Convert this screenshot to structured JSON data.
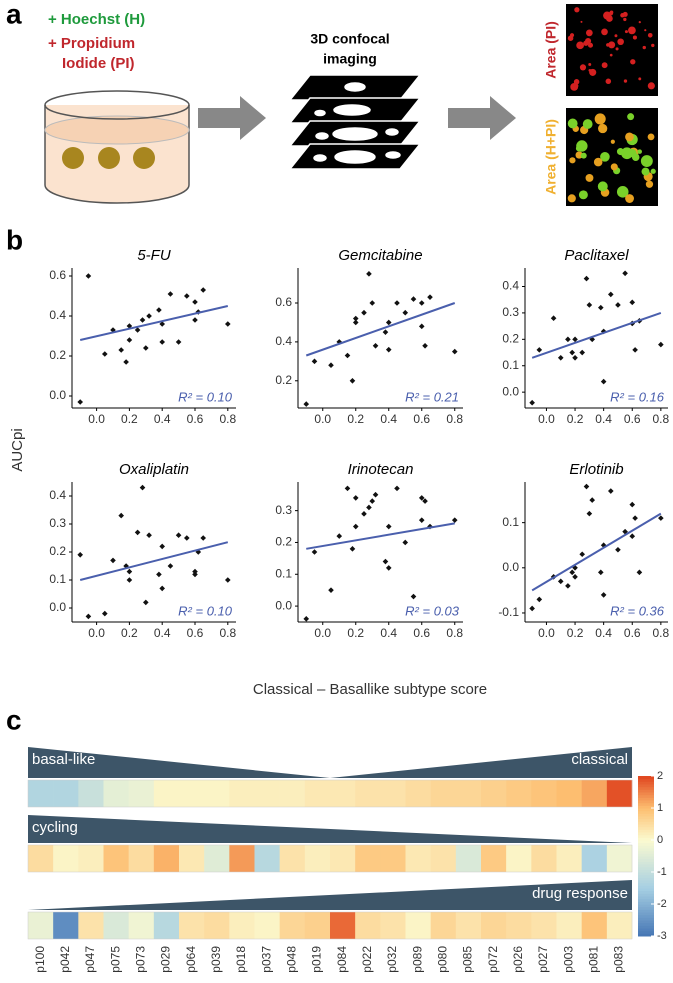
{
  "panel_labels": [
    "a",
    "b",
    "c"
  ],
  "panel_a": {
    "stain_1": "+ Hoechst (H)",
    "stain_2": [
      "+ Propidium",
      "Iodide (PI)"
    ],
    "step": [
      "3D confocal",
      "imaging"
    ],
    "image_labels": [
      "Area (PI)",
      "Area (H+PI)"
    ]
  },
  "panel_b": {
    "ylabel": "AUCpi",
    "xlabel": "Classical – Basallike subtype score"
  },
  "chart_data": [
    {
      "type": "scatter",
      "title": "5-FU",
      "annotation": "R² = 0.10",
      "color": "#111111",
      "line_color": "#4a5fad",
      "x": [
        -0.1,
        -0.05,
        0.05,
        0.1,
        0.15,
        0.18,
        0.2,
        0.2,
        0.25,
        0.28,
        0.3,
        0.32,
        0.38,
        0.4,
        0.4,
        0.45,
        0.5,
        0.55,
        0.6,
        0.6,
        0.62,
        0.65,
        0.8
      ],
      "values": [
        -0.03,
        0.6,
        0.21,
        0.33,
        0.23,
        0.17,
        0.28,
        0.35,
        0.33,
        0.38,
        0.24,
        0.4,
        0.43,
        0.27,
        0.36,
        0.51,
        0.27,
        0.5,
        0.47,
        0.38,
        0.42,
        0.53,
        0.36
      ],
      "fit_line": {
        "x": [
          -0.1,
          0.8
        ],
        "y": [
          0.28,
          0.45
        ]
      },
      "xlim": [
        -0.15,
        0.85
      ],
      "xticks": [
        {
          "value": 0,
          "label": "0.0"
        },
        0.2,
        0.4,
        0.6,
        0.8
      ],
      "ylim": [
        -0.06,
        0.64
      ],
      "yticks": [
        {
          "value": 0,
          "label": "0.0"
        },
        0.2,
        0.4,
        0.6
      ]
    },
    {
      "type": "scatter",
      "title": "Gemcitabine",
      "annotation": "R² = 0.21",
      "color": "#111111",
      "line_color": "#4a5fad",
      "x": [
        -0.1,
        -0.05,
        0.05,
        0.1,
        0.15,
        0.18,
        0.2,
        0.2,
        0.25,
        0.28,
        0.3,
        0.32,
        0.38,
        0.4,
        0.4,
        0.45,
        0.5,
        0.55,
        0.6,
        0.6,
        0.62,
        0.65,
        0.8
      ],
      "values": [
        0.08,
        0.3,
        0.28,
        0.4,
        0.33,
        0.2,
        0.52,
        0.5,
        0.55,
        0.75,
        0.6,
        0.38,
        0.45,
        0.36,
        0.5,
        0.6,
        0.55,
        0.62,
        0.48,
        0.6,
        0.38,
        0.63,
        0.35
      ],
      "fit_line": {
        "x": [
          -0.1,
          0.8
        ],
        "y": [
          0.33,
          0.6
        ]
      },
      "xlim": [
        -0.15,
        0.85
      ],
      "xticks": [
        {
          "value": 0,
          "label": "0.0"
        },
        0.2,
        0.4,
        0.6,
        0.8
      ],
      "ylim": [
        0.06,
        0.78
      ],
      "yticks": [
        0.2,
        0.4,
        0.6
      ]
    },
    {
      "type": "scatter",
      "title": "Paclitaxel",
      "annotation": "R² = 0.16",
      "color": "#111111",
      "line_color": "#4a5fad",
      "x": [
        -0.1,
        -0.05,
        0.05,
        0.1,
        0.15,
        0.18,
        0.2,
        0.2,
        0.25,
        0.28,
        0.3,
        0.32,
        0.38,
        0.4,
        0.4,
        0.45,
        0.5,
        0.55,
        0.6,
        0.6,
        0.62,
        0.65,
        0.8
      ],
      "values": [
        -0.04,
        0.16,
        0.28,
        0.13,
        0.2,
        0.15,
        0.13,
        0.2,
        0.15,
        0.43,
        0.33,
        0.2,
        0.32,
        0.04,
        0.23,
        0.37,
        0.33,
        0.45,
        0.34,
        0.26,
        0.16,
        0.27,
        0.18
      ],
      "fit_line": {
        "x": [
          -0.1,
          0.8
        ],
        "y": [
          0.13,
          0.3
        ]
      },
      "xlim": [
        -0.15,
        0.85
      ],
      "xticks": [
        {
          "value": 0,
          "label": "0.0"
        },
        0.2,
        0.4,
        0.6,
        0.8
      ],
      "ylim": [
        -0.06,
        0.47
      ],
      "yticks": [
        {
          "value": 0,
          "label": "0.0"
        },
        0.1,
        0.2,
        0.3,
        0.4
      ]
    },
    {
      "type": "scatter",
      "title": "Oxaliplatin",
      "annotation": "R² = 0.10",
      "color": "#111111",
      "line_color": "#4a5fad",
      "x": [
        -0.1,
        -0.05,
        0.05,
        0.1,
        0.15,
        0.18,
        0.2,
        0.2,
        0.25,
        0.28,
        0.3,
        0.32,
        0.38,
        0.4,
        0.4,
        0.45,
        0.5,
        0.55,
        0.6,
        0.6,
        0.62,
        0.65,
        0.8
      ],
      "values": [
        0.19,
        -0.03,
        -0.02,
        0.17,
        0.33,
        0.15,
        0.13,
        0.1,
        0.27,
        0.43,
        0.02,
        0.26,
        0.12,
        0.07,
        0.22,
        0.15,
        0.26,
        0.25,
        0.12,
        0.13,
        0.2,
        0.25,
        0.1
      ],
      "fit_line": {
        "x": [
          -0.1,
          0.8
        ],
        "y": [
          0.1,
          0.235
        ]
      },
      "xlim": [
        -0.15,
        0.85
      ],
      "xticks": [
        {
          "value": 0,
          "label": "0.0"
        },
        0.2,
        0.4,
        0.6,
        0.8
      ],
      "ylim": [
        -0.05,
        0.45
      ],
      "yticks": [
        {
          "value": 0,
          "label": "0.0"
        },
        0.1,
        0.2,
        0.3,
        0.4
      ]
    },
    {
      "type": "scatter",
      "title": "Irinotecan",
      "annotation": "R² = 0.03",
      "color": "#111111",
      "line_color": "#4a5fad",
      "x": [
        -0.1,
        -0.05,
        0.05,
        0.1,
        0.15,
        0.18,
        0.2,
        0.2,
        0.25,
        0.28,
        0.3,
        0.32,
        0.38,
        0.4,
        0.4,
        0.45,
        0.5,
        0.55,
        0.6,
        0.6,
        0.62,
        0.65,
        0.8
      ],
      "values": [
        -0.04,
        0.17,
        0.05,
        0.22,
        0.37,
        0.18,
        0.25,
        0.34,
        0.29,
        0.31,
        0.33,
        0.35,
        0.14,
        0.12,
        0.25,
        0.37,
        0.2,
        0.03,
        0.34,
        0.27,
        0.33,
        0.25,
        0.27
      ],
      "fit_line": {
        "x": [
          -0.1,
          0.8
        ],
        "y": [
          0.18,
          0.26
        ]
      },
      "xlim": [
        -0.15,
        0.85
      ],
      "xticks": [
        {
          "value": 0,
          "label": "0.0"
        },
        0.2,
        0.4,
        0.6,
        0.8
      ],
      "ylim": [
        -0.05,
        0.39
      ],
      "yticks": [
        {
          "value": 0,
          "label": "0.0"
        },
        0.1,
        0.2,
        0.3
      ]
    },
    {
      "type": "scatter",
      "title": "Erlotinib",
      "annotation": "R² = 0.36",
      "color": "#111111",
      "line_color": "#4a5fad",
      "x": [
        -0.1,
        -0.05,
        0.05,
        0.1,
        0.15,
        0.18,
        0.2,
        0.2,
        0.25,
        0.28,
        0.3,
        0.32,
        0.38,
        0.4,
        0.4,
        0.45,
        0.5,
        0.55,
        0.6,
        0.6,
        0.62,
        0.65,
        0.8
      ],
      "values": [
        -0.09,
        -0.07,
        -0.02,
        -0.03,
        -0.04,
        -0.01,
        0.0,
        -0.02,
        0.03,
        0.18,
        0.12,
        0.15,
        -0.01,
        -0.06,
        0.05,
        0.17,
        0.04,
        0.08,
        0.14,
        0.07,
        0.11,
        -0.01,
        0.11
      ],
      "fit_line": {
        "x": [
          -0.1,
          0.8
        ],
        "y": [
          -0.05,
          0.12
        ]
      },
      "xlim": [
        -0.15,
        0.85
      ],
      "xticks": [
        {
          "value": 0,
          "label": "0.0"
        },
        0.2,
        0.4,
        0.6,
        0.8
      ],
      "ylim": [
        -0.12,
        0.19
      ],
      "yticks": [
        -0.1,
        {
          "value": 0,
          "label": "0.0"
        },
        0.1
      ]
    },
    {
      "type": "heatmap",
      "categories": [
        "p100",
        "p042",
        "p047",
        "p075",
        "p073",
        "p029",
        "p064",
        "p039",
        "p018",
        "p037",
        "p048",
        "p019",
        "p084",
        "p022",
        "p032",
        "p089",
        "p080",
        "p085",
        "p072",
        "p026",
        "p027",
        "p003",
        "p081",
        "p083"
      ],
      "series": [
        {
          "labels": [
            "basal-like",
            "classical"
          ],
          "values": [
            -1.3,
            -1.3,
            -0.9,
            -0.4,
            -0.3,
            0.1,
            0.1,
            0.1,
            0.2,
            0.2,
            0.2,
            0.3,
            0.3,
            0.4,
            0.4,
            0.5,
            0.6,
            0.6,
            0.7,
            0.8,
            0.9,
            1.0,
            1.2,
            1.9
          ]
        },
        {
          "labels": [
            "cycling"
          ],
          "values": [
            0.5,
            0.1,
            0.2,
            0.9,
            0.5,
            1.1,
            0.3,
            -0.5,
            1.3,
            -1.2,
            0.4,
            0.2,
            0.3,
            0.8,
            0.8,
            0.3,
            0.4,
            -0.6,
            0.8,
            0.1,
            0.5,
            0.2,
            -1.4,
            -0.2
          ]
        },
        {
          "labels": [
            "drug response"
          ],
          "values": [
            -0.3,
            -2.6,
            0.4,
            -0.6,
            -0.2,
            -1.2,
            0.4,
            0.5,
            0.2,
            0.1,
            0.6,
            0.7,
            1.7,
            0.5,
            0.4,
            0.1,
            0.6,
            0.4,
            0.6,
            0.5,
            0.4,
            0.2,
            0.9,
            0.2
          ]
        }
      ],
      "zlim": [
        -3,
        2
      ],
      "zticks": [
        -3,
        -2,
        -1,
        0,
        1,
        2
      ],
      "color_stops": [
        {
          "value": -3,
          "color": "#4575b4"
        },
        {
          "value": -1.5,
          "color": "#a6cfe3"
        },
        {
          "value": 0,
          "color": "#fbfad0"
        },
        {
          "value": 1,
          "color": "#fdbe70"
        },
        {
          "value": 2,
          "color": "#e0451f"
        }
      ],
      "banner_color": "#3d5568"
    }
  ]
}
